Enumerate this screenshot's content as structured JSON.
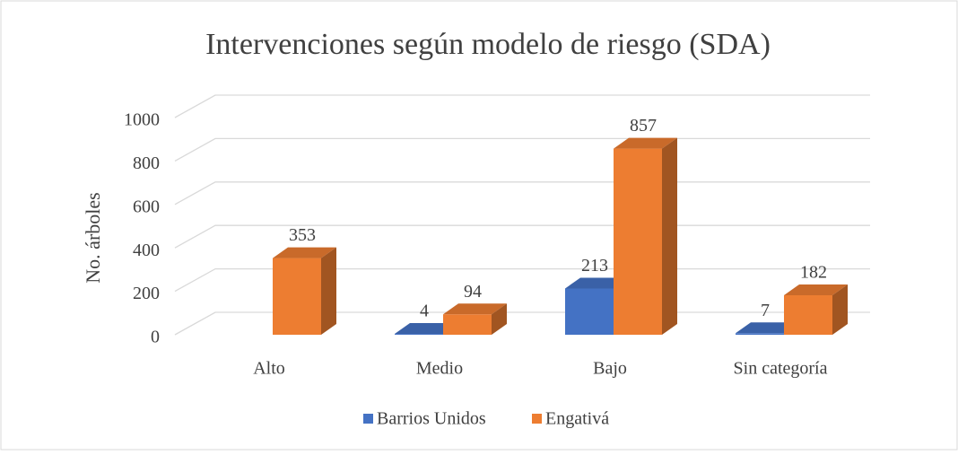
{
  "chart_data": {
    "type": "bar3d",
    "title": "Intervenciones según modelo de riesgo (SDA)",
    "y_axis_label": "No. árboles",
    "categories": [
      "Alto",
      "Medio",
      "Bajo",
      "Sin categoría"
    ],
    "series": [
      {
        "name": "Barrios Unidos",
        "color": "#4472c4",
        "values": [
          null,
          4,
          213,
          7
        ]
      },
      {
        "name": "Engativá",
        "color": "#ed7d31",
        "values": [
          353,
          94,
          857,
          182
        ]
      }
    ],
    "ylim": [
      0,
      1000
    ],
    "yticks": [
      0,
      200,
      400,
      600,
      800,
      1000
    ],
    "grid": true,
    "legend": "bottom"
  }
}
